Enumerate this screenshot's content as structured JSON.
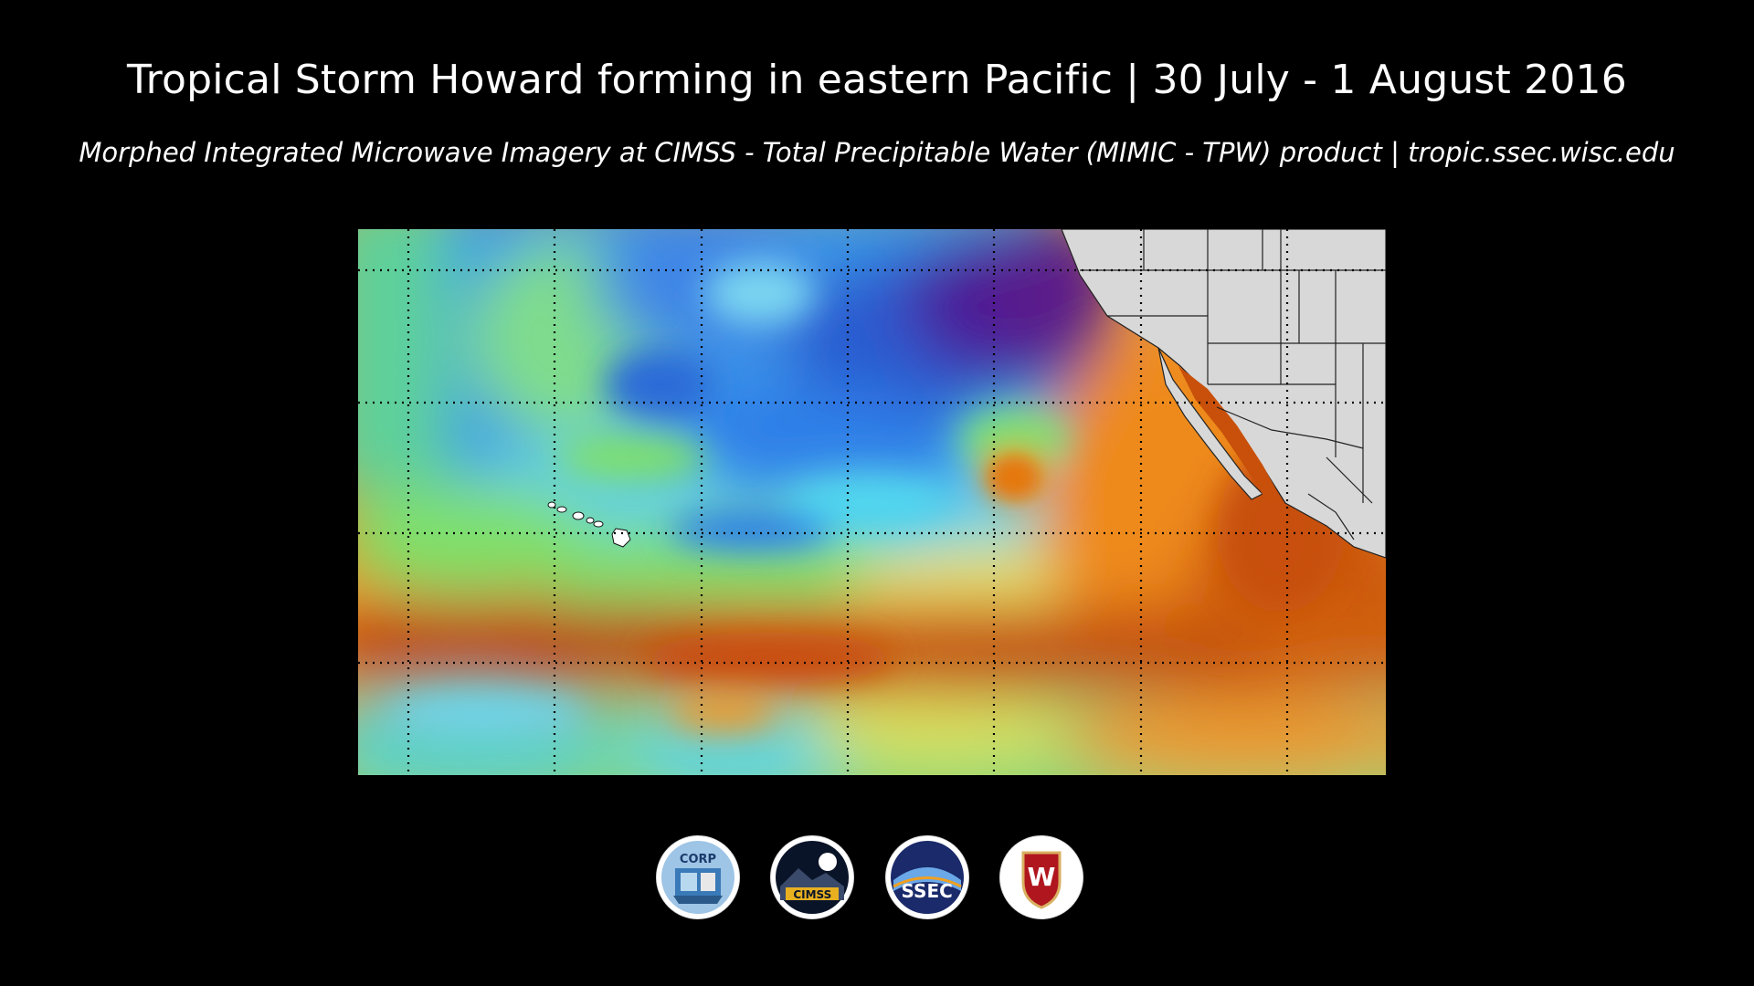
{
  "header": {
    "title": "Tropical Storm Howard forming in eastern Pacific | 30 July - 1 August 2016",
    "subtitle": "Morphed Integrated Microwave Imagery at CIMSS - Total Precipitable Water (MIMIC - TPW) product | tropic.ssec.wisc.edu"
  },
  "map": {
    "product": "MIMIC-TPW",
    "colors": {
      "dry_purple": "#5a1a8a",
      "blue": "#2f7fe8",
      "cyan": "#4fd8f0",
      "green": "#7fe06a",
      "yellow": "#f0e060",
      "orange": "#ec8a1c",
      "dark_orange": "#c8500a",
      "land": "#d8d8d8"
    }
  },
  "logos": [
    {
      "name": "corp-logo",
      "text": "CORP",
      "color": "#3a7ab8"
    },
    {
      "name": "cimss-logo",
      "text": "CIMSS",
      "color": "#e8b020"
    },
    {
      "name": "ssec-logo",
      "text": "SSEC",
      "color": "#2a4aa8"
    },
    {
      "name": "uw-logo",
      "text": "W",
      "color": "#b0161e"
    }
  ]
}
